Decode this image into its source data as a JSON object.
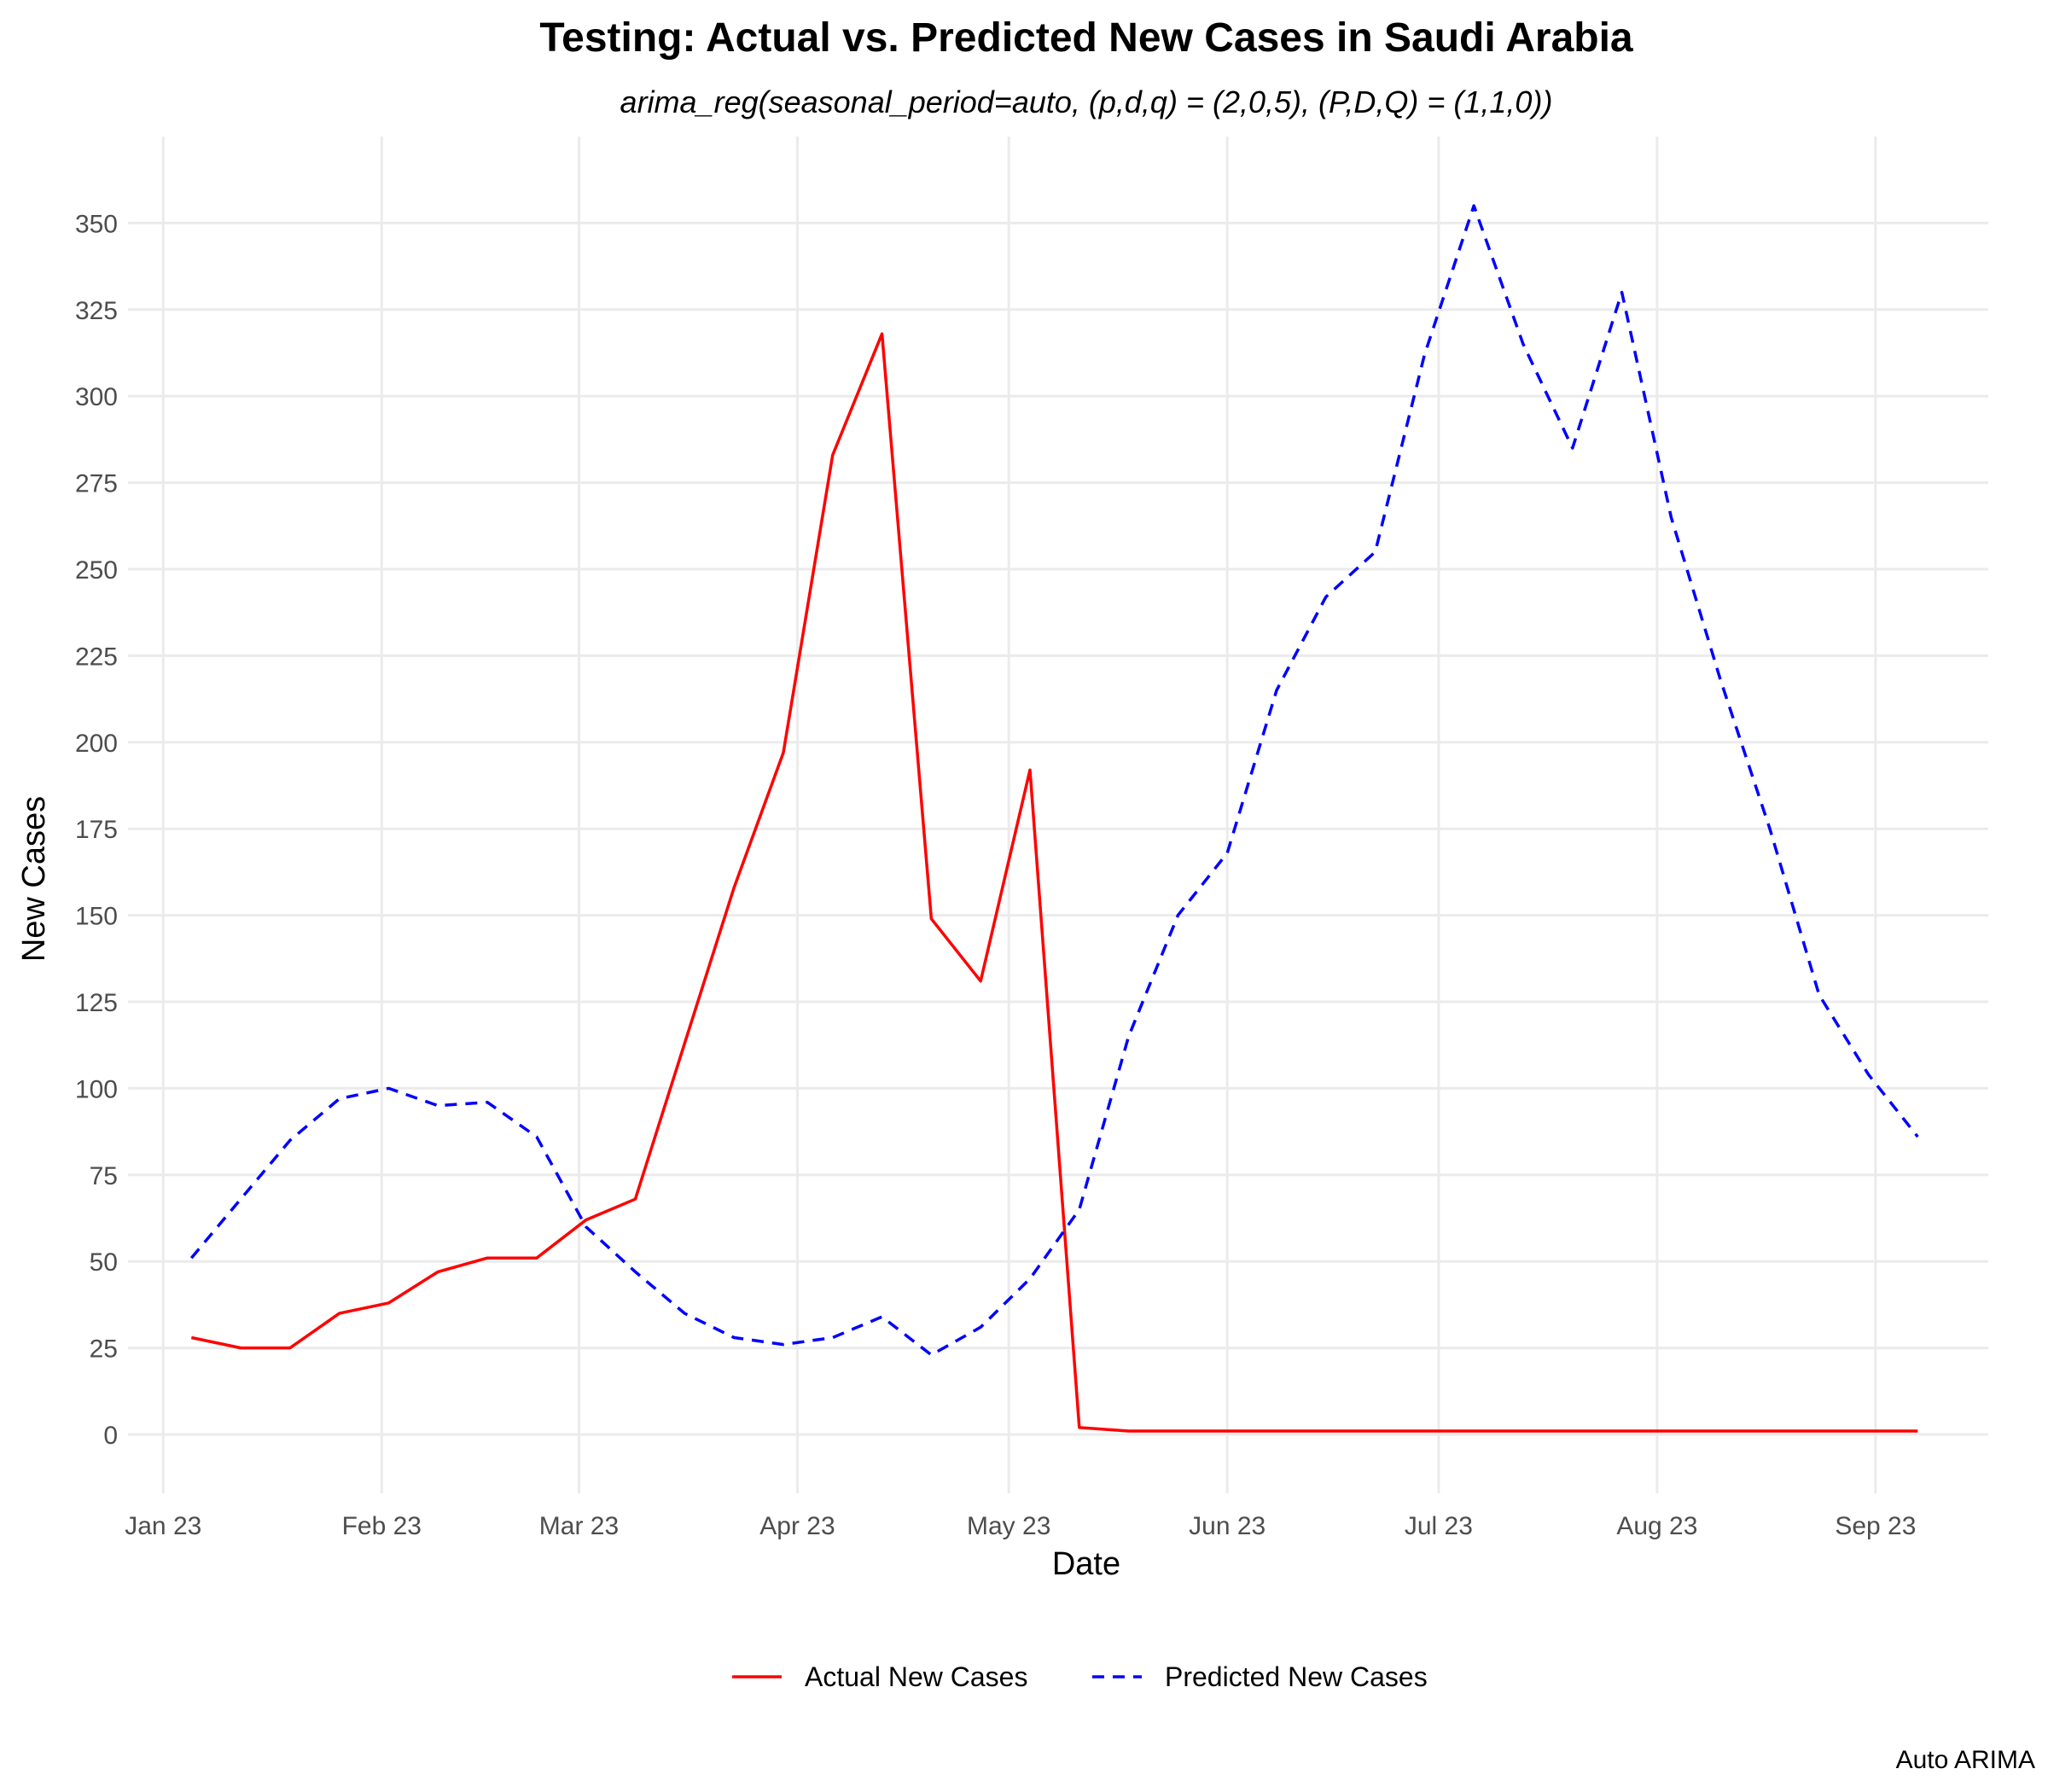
{
  "chart_data": {
    "type": "line",
    "title": "Testing: Actual vs. Predicted New Cases in Saudi Arabia",
    "subtitle": "arima_reg(seasonal_period=auto, (p,d,q) = (2,0,5), (P,D,Q) = (1,1,0))",
    "xlabel": "Date",
    "ylabel": "New Cases",
    "caption": "Auto ARIMA",
    "x_ticks": [
      {
        "date": "2023-01-01",
        "label": "Jan 23"
      },
      {
        "date": "2023-02-01",
        "label": "Feb 23"
      },
      {
        "date": "2023-03-01",
        "label": "Mar 23"
      },
      {
        "date": "2023-04-01",
        "label": "Apr 23"
      },
      {
        "date": "2023-05-01",
        "label": "May 23"
      },
      {
        "date": "2023-06-01",
        "label": "Jun 23"
      },
      {
        "date": "2023-07-01",
        "label": "Jul 23"
      },
      {
        "date": "2023-08-01",
        "label": "Aug 23"
      },
      {
        "date": "2023-09-01",
        "label": "Sep 23"
      }
    ],
    "xlim": [
      "2022-12-27",
      "2023-09-17"
    ],
    "y_ticks": [
      0,
      25,
      50,
      75,
      100,
      125,
      150,
      175,
      200,
      225,
      250,
      275,
      300,
      325,
      350
    ],
    "ylim": [
      -17,
      375
    ],
    "grid": true,
    "legend_position": "bottom",
    "series": [
      {
        "name": "Actual New Cases",
        "color": "#ff0000",
        "line_style": "solid",
        "points": [
          [
            "2023-01-05",
            28
          ],
          [
            "2023-01-12",
            25
          ],
          [
            "2023-01-19",
            25
          ],
          [
            "2023-01-26",
            35
          ],
          [
            "2023-02-02",
            38
          ],
          [
            "2023-02-09",
            47
          ],
          [
            "2023-02-16",
            51
          ],
          [
            "2023-02-23",
            51
          ],
          [
            "2023-03-02",
            62
          ],
          [
            "2023-03-09",
            68
          ],
          [
            "2023-03-16",
            113
          ],
          [
            "2023-03-23",
            158
          ],
          [
            "2023-03-30",
            197
          ],
          [
            "2023-04-06",
            283
          ],
          [
            "2023-04-13",
            318
          ],
          [
            "2023-04-20",
            149
          ],
          [
            "2023-04-27",
            131
          ],
          [
            "2023-05-04",
            192
          ],
          [
            "2023-05-11",
            2
          ],
          [
            "2023-05-18",
            1
          ],
          [
            "2023-05-25",
            1
          ],
          [
            "2023-06-01",
            1
          ],
          [
            "2023-06-08",
            1
          ],
          [
            "2023-06-15",
            1
          ],
          [
            "2023-06-22",
            1
          ],
          [
            "2023-06-29",
            1
          ],
          [
            "2023-07-06",
            1
          ],
          [
            "2023-07-13",
            1
          ],
          [
            "2023-07-20",
            1
          ],
          [
            "2023-07-27",
            1
          ],
          [
            "2023-08-03",
            1
          ],
          [
            "2023-08-10",
            1
          ],
          [
            "2023-08-17",
            1
          ],
          [
            "2023-08-24",
            1
          ],
          [
            "2023-08-31",
            1
          ],
          [
            "2023-09-07",
            1
          ]
        ]
      },
      {
        "name": "Predicted New Cases",
        "color": "#0000ff",
        "line_style": "dashed",
        "points": [
          [
            "2023-01-05",
            51
          ],
          [
            "2023-01-12",
            68
          ],
          [
            "2023-01-19",
            85
          ],
          [
            "2023-01-26",
            97
          ],
          [
            "2023-02-02",
            100
          ],
          [
            "2023-02-09",
            95
          ],
          [
            "2023-02-16",
            96
          ],
          [
            "2023-02-23",
            86
          ],
          [
            "2023-03-02",
            60
          ],
          [
            "2023-03-09",
            47
          ],
          [
            "2023-03-16",
            35
          ],
          [
            "2023-03-23",
            28
          ],
          [
            "2023-03-30",
            26
          ],
          [
            "2023-04-06",
            28
          ],
          [
            "2023-04-13",
            34
          ],
          [
            "2023-04-20",
            23
          ],
          [
            "2023-04-27",
            31
          ],
          [
            "2023-05-04",
            45
          ],
          [
            "2023-05-11",
            65
          ],
          [
            "2023-05-18",
            115
          ],
          [
            "2023-05-25",
            150
          ],
          [
            "2023-06-01",
            168
          ],
          [
            "2023-06-08",
            215
          ],
          [
            "2023-06-15",
            242
          ],
          [
            "2023-06-22",
            255
          ],
          [
            "2023-06-29",
            312
          ],
          [
            "2023-07-06",
            355
          ],
          [
            "2023-07-13",
            315
          ],
          [
            "2023-07-20",
            285
          ],
          [
            "2023-07-27",
            330
          ],
          [
            "2023-08-03",
            265
          ],
          [
            "2023-08-10",
            218
          ],
          [
            "2023-08-17",
            175
          ],
          [
            "2023-08-24",
            127
          ],
          [
            "2023-08-31",
            104
          ],
          [
            "2023-09-07",
            86
          ]
        ]
      }
    ]
  }
}
